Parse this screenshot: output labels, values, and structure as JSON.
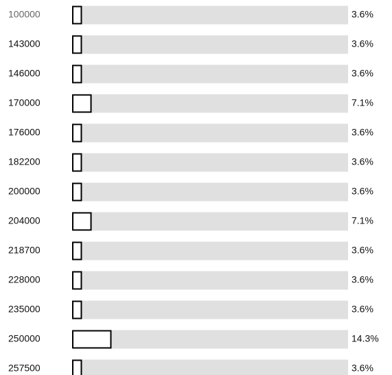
{
  "chart_data": {
    "type": "bar",
    "orientation": "horizontal",
    "categories": [
      "100000",
      "143000",
      "146000",
      "170000",
      "176000",
      "182200",
      "200000",
      "204000",
      "218700",
      "228000",
      "235000",
      "250000",
      "257500"
    ],
    "values": [
      3.6,
      3.6,
      3.6,
      7.1,
      3.6,
      3.6,
      3.6,
      7.1,
      3.6,
      3.6,
      3.6,
      14.3,
      3.6
    ],
    "value_labels": [
      "3.6%",
      "3.6%",
      "3.6%",
      "7.1%",
      "3.6%",
      "3.6%",
      "3.6%",
      "7.1%",
      "3.6%",
      "3.6%",
      "3.6%",
      "14.3%",
      "3.6%"
    ],
    "xlim": [
      0,
      100
    ],
    "color": "#ffffff",
    "track_color": "#e0e0e0"
  }
}
